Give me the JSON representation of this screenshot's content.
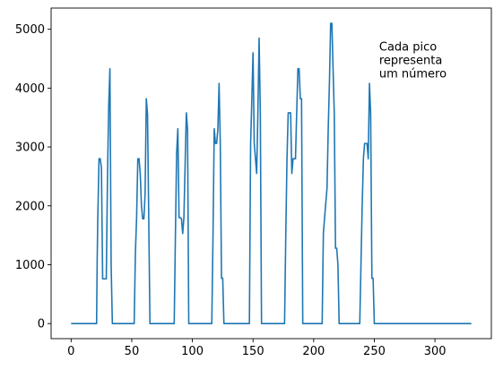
{
  "chart_data": {
    "type": "line",
    "title": "",
    "xlabel": "",
    "ylabel": "",
    "xlim": [
      -16.5,
      346.5
    ],
    "ylim": [
      -256,
      5360
    ],
    "xticks": [
      0,
      50,
      100,
      150,
      200,
      250,
      300
    ],
    "yticks": [
      0,
      1000,
      2000,
      3000,
      4000,
      5000
    ],
    "xtick_labels": [
      "0",
      "50",
      "100",
      "150",
      "200",
      "250",
      "300"
    ],
    "ytick_labels": [
      "0",
      "1000",
      "2000",
      "3000",
      "4000",
      "5000"
    ],
    "grid": false,
    "legend": "none",
    "series_color": "#1f77b4",
    "annotation": {
      "lines": [
        "Cada pico",
        "representa",
        "um número"
      ],
      "x": 254,
      "y": 4700
    },
    "series": [
      {
        "x": [
          0,
          21,
          21.5,
          22,
          23,
          24,
          25,
          26,
          27,
          28,
          29,
          30,
          31,
          32,
          33,
          34,
          51,
          52,
          53,
          54,
          55,
          56,
          57,
          58,
          59,
          60,
          61,
          62,
          63,
          64,
          65,
          84,
          85,
          86,
          87,
          88,
          89,
          90,
          91,
          92,
          93,
          94,
          95,
          96,
          97,
          115,
          116,
          117,
          118,
          119,
          120,
          121,
          122,
          123,
          124,
          125,
          126,
          146,
          147,
          148,
          149,
          150,
          151,
          152,
          153,
          154,
          155,
          156,
          157,
          175,
          176,
          177,
          178,
          179,
          180,
          181,
          182,
          183,
          184,
          185,
          186,
          187,
          188,
          189,
          190,
          191,
          206,
          207,
          208,
          209,
          210,
          211,
          212,
          213,
          214,
          215,
          216,
          217,
          218,
          219,
          220,
          221,
          237,
          238,
          239,
          240,
          241,
          242,
          243,
          244,
          245,
          246,
          247,
          248,
          249,
          250,
          330
        ],
        "y": [
          0,
          0,
          1100,
          1800,
          2800,
          2800,
          2650,
          760,
          760,
          760,
          760,
          2500,
          3700,
          4330,
          1000,
          0,
          0,
          0,
          1200,
          1800,
          2800,
          2800,
          2550,
          2000,
          1780,
          1780,
          2200,
          3820,
          3560,
          1800,
          0,
          0,
          0,
          1500,
          2900,
          3310,
          1800,
          1800,
          1780,
          1530,
          1800,
          2700,
          3580,
          3300,
          0,
          0,
          0,
          1500,
          3310,
          3060,
          3060,
          3300,
          4080,
          3060,
          770,
          770,
          0,
          0,
          0,
          3060,
          3800,
          4600,
          3060,
          2800,
          2550,
          3580,
          4850,
          3600,
          0,
          0,
          0,
          1500,
          2800,
          3580,
          3580,
          3580,
          2550,
          2800,
          2800,
          2800,
          3580,
          4330,
          4330,
          3820,
          3820,
          0,
          0,
          0,
          1530,
          1800,
          2050,
          2300,
          3300,
          4100,
          5100,
          5100,
          4330,
          3560,
          1280,
          1280,
          1000,
          0,
          0,
          0,
          1000,
          2000,
          2800,
          3060,
          3060,
          3060,
          2800,
          4080,
          3560,
          770,
          770,
          0,
          0
        ]
      }
    ]
  }
}
